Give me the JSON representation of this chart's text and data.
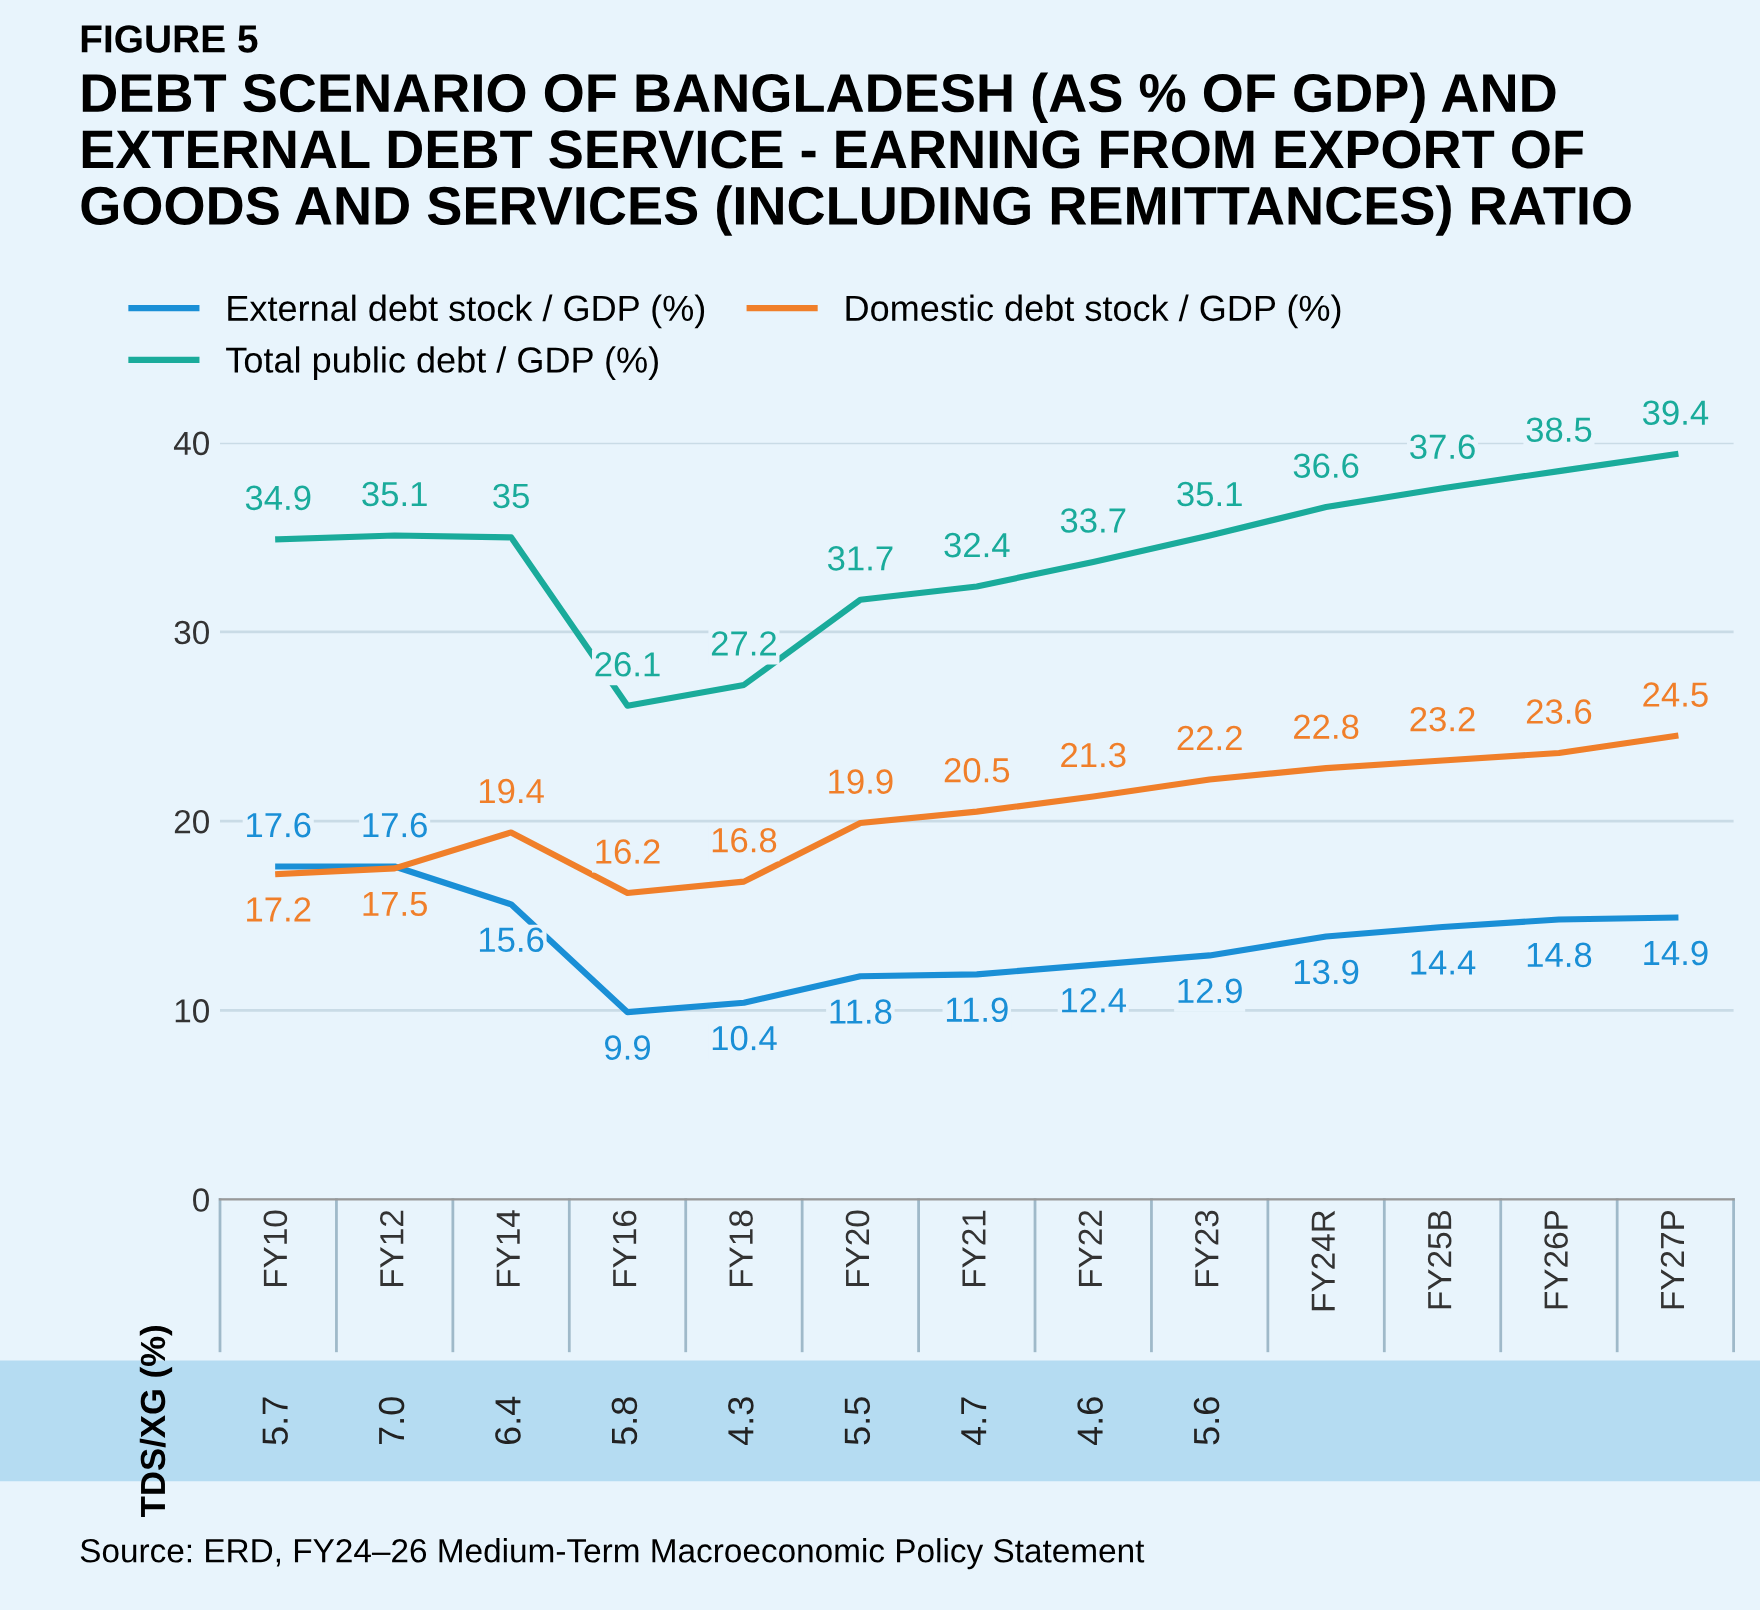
{
  "chart_data": {
    "type": "line",
    "subtitle": "FIGURE 5",
    "title": "DEBT SCENARIO OF BANGLADESH (AS % OF GDP) AND\nEXTERNAL DEBT SERVICE - EARNING FROM EXPORT OF\nGOODS AND SERVICES (INCLUDING REMITTANCES) RATIO",
    "categories": [
      "FY10",
      "FY12",
      "FY14",
      "FY16",
      "FY18",
      "FY20",
      "FY21",
      "FY22",
      "FY23",
      "FY24R",
      "FY25B",
      "FY26P",
      "FY27P"
    ],
    "series": [
      {
        "name": "External debt stock / GDP (%)",
        "color": "#1a8fd6",
        "values": [
          17.6,
          17.6,
          15.6,
          9.9,
          10.4,
          11.8,
          11.9,
          12.4,
          12.9,
          13.9,
          14.4,
          14.8,
          14.9
        ]
      },
      {
        "name": "Domestic debt stock / GDP (%)",
        "color": "#f07f2a",
        "values": [
          17.2,
          17.5,
          19.4,
          16.2,
          16.8,
          19.9,
          20.5,
          21.3,
          22.2,
          22.8,
          23.2,
          23.6,
          24.5
        ]
      },
      {
        "name": "Total public debt / GDP (%)",
        "color": "#1aab9b",
        "values": [
          34.9,
          35.1,
          35,
          26.1,
          27.2,
          31.7,
          32.4,
          33.7,
          35.1,
          36.6,
          37.6,
          38.5,
          39.4
        ]
      }
    ],
    "ylim": [
      0,
      40
    ],
    "yticks": [
      0,
      10,
      20,
      30,
      40
    ],
    "grid": "y",
    "legend": "top left",
    "data_labels": true,
    "marker": "none",
    "line_style": "solid",
    "annotations": [
      "TDS/XG (%)",
      "5.7",
      "7.0",
      "6.4",
      "5.8",
      "4.3",
      "5.5",
      "4.7",
      "4.6",
      "5.6",
      "Source: ERD, FY24–26 Medium-Term Macroeconomic Policy Statement"
    ]
  }
}
